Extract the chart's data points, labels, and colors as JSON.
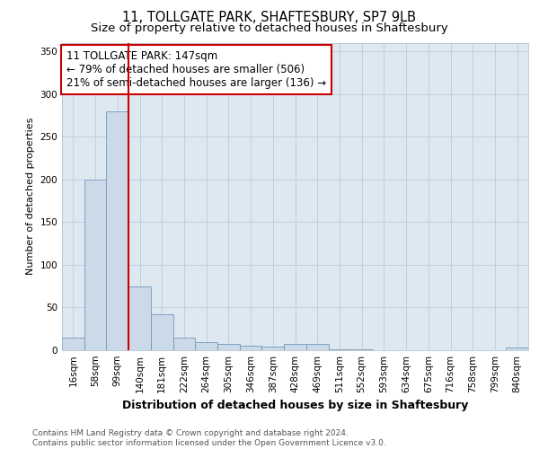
{
  "title_line1": "11, TOLLGATE PARK, SHAFTESBURY, SP7 9LB",
  "title_line2": "Size of property relative to detached houses in Shaftesbury",
  "xlabel": "Distribution of detached houses by size in Shaftesbury",
  "ylabel": "Number of detached properties",
  "categories": [
    "16sqm",
    "58sqm",
    "99sqm",
    "140sqm",
    "181sqm",
    "222sqm",
    "264sqm",
    "305sqm",
    "346sqm",
    "387sqm",
    "428sqm",
    "469sqm",
    "511sqm",
    "552sqm",
    "593sqm",
    "634sqm",
    "675sqm",
    "716sqm",
    "758sqm",
    "799sqm",
    "840sqm"
  ],
  "values": [
    15,
    200,
    280,
    75,
    42,
    15,
    9,
    7,
    5,
    4,
    7,
    7,
    1,
    1,
    0,
    0,
    0,
    0,
    0,
    0,
    3
  ],
  "bar_color": "#ccd9e8",
  "bar_edge_color": "#7099bb",
  "vline_color": "#cc0000",
  "vline_x_index": 3,
  "annotation_text": "11 TOLLGATE PARK: 147sqm\n← 79% of detached houses are smaller (506)\n21% of semi-detached houses are larger (136) →",
  "annotation_box_facecolor": "#ffffff",
  "annotation_box_edgecolor": "#cc0000",
  "ylim": [
    0,
    360
  ],
  "yticks": [
    0,
    50,
    100,
    150,
    200,
    250,
    300,
    350
  ],
  "grid_color": "#bbccdd",
  "background_color": "#dde8f0",
  "footer_text": "Contains HM Land Registry data © Crown copyright and database right 2024.\nContains public sector information licensed under the Open Government Licence v3.0.",
  "title_fontsize": 10.5,
  "subtitle_fontsize": 9.5,
  "xlabel_fontsize": 9,
  "ylabel_fontsize": 8,
  "tick_fontsize": 7.5,
  "annotation_fontsize": 8.5,
  "footer_fontsize": 6.5
}
